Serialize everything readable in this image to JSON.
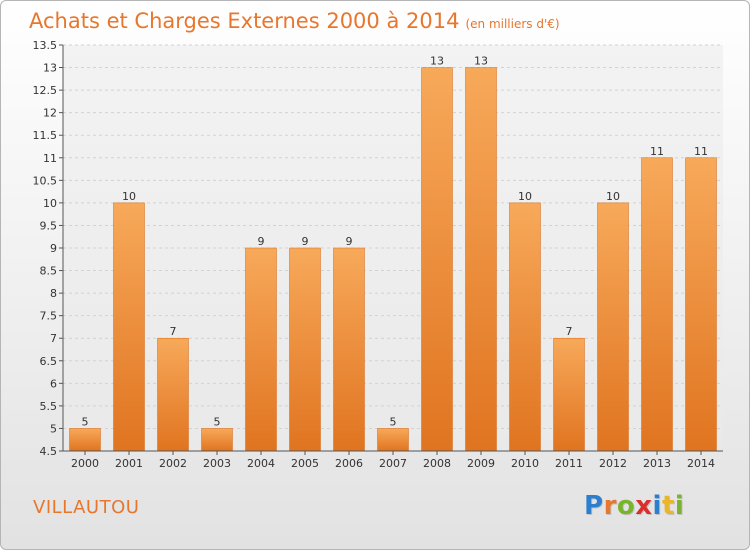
{
  "header": {
    "title": "Achats et Charges Externes 2000 à 2014",
    "unit": "(en milliers d'€)"
  },
  "footer": {
    "place": "VILLAUTOU",
    "logo_letters": [
      "P",
      "r",
      "o",
      "x",
      "i",
      "t",
      "i"
    ],
    "logo_colors": [
      "#2c7fcf",
      "#e8762c",
      "#7ab32e",
      "#d9302c",
      "#2c7fcf",
      "#e8b52c",
      "#7ab32e"
    ]
  },
  "chart_data": {
    "type": "bar",
    "title": "Achats et Charges Externes 2000 à 2014",
    "xlabel": "",
    "ylabel": "",
    "categories": [
      "2000",
      "2001",
      "2002",
      "2003",
      "2004",
      "2005",
      "2006",
      "2007",
      "2008",
      "2009",
      "2010",
      "2011",
      "2012",
      "2013",
      "2014"
    ],
    "values": [
      5,
      10,
      7,
      5,
      9,
      9,
      9,
      5,
      13,
      13,
      10,
      7,
      10,
      11,
      11
    ],
    "ylim": [
      4.5,
      13.5
    ],
    "yticks": [
      4.5,
      5,
      5.5,
      6,
      6.5,
      7,
      7.5,
      8,
      8.5,
      9,
      9.5,
      10,
      10.5,
      11,
      11.5,
      12,
      12.5,
      13,
      13.5
    ],
    "grid": true,
    "bar_color": "#f0892f"
  }
}
